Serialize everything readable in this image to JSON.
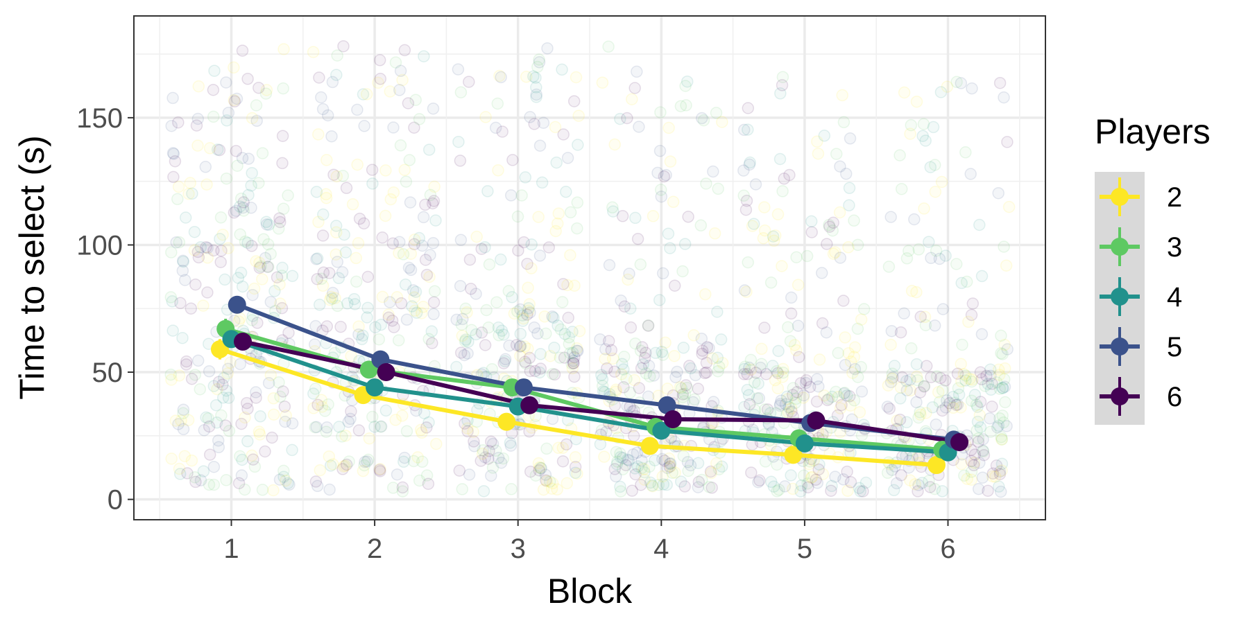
{
  "chart_data": {
    "type": "line",
    "xlabel": "Block",
    "ylabel": "Time to select (s)",
    "x_ticks": [
      "1",
      "2",
      "3",
      "4",
      "5",
      "6"
    ],
    "y_ticks": [
      "0",
      "50",
      "100",
      "150"
    ],
    "xlim": [
      0.32,
      6.68
    ],
    "ylim": [
      -8,
      190
    ],
    "grid": true,
    "legend": {
      "title": "Players",
      "position": "right"
    },
    "x": [
      1,
      2,
      3,
      4,
      5,
      6
    ],
    "series": [
      {
        "name": "2",
        "color": "#FDE725",
        "values": [
          59,
          41,
          30.5,
          21,
          17.5,
          13.5
        ],
        "errors": [
          4,
          2,
          1.5,
          1,
          1,
          1
        ]
      },
      {
        "name": "3",
        "color": "#5EC962",
        "values": [
          67,
          51,
          44,
          28.5,
          24,
          19.5
        ],
        "errors": [
          4,
          2,
          1.5,
          1,
          1,
          1
        ]
      },
      {
        "name": "4",
        "color": "#21918C",
        "values": [
          63,
          44,
          36.5,
          27,
          22,
          18.5
        ],
        "errors": [
          3,
          2,
          1.5,
          1,
          1,
          1
        ]
      },
      {
        "name": "5",
        "color": "#3B528B",
        "values": [
          76.5,
          55,
          44,
          37,
          30,
          23.5
        ],
        "errors": [
          3,
          2,
          1.5,
          1,
          1,
          1
        ]
      },
      {
        "name": "6",
        "color": "#440154",
        "values": [
          62,
          50,
          37,
          31.5,
          31,
          22.5
        ],
        "errors": [
          3,
          2,
          1.5,
          1,
          1,
          1
        ]
      }
    ],
    "raw_points": {
      "description": "jittered semi-transparent individual trials per block",
      "upper_bound_by_block": [
        180,
        180,
        178,
        178,
        168,
        166
      ],
      "dense_top_by_block": [
        110,
        100,
        75,
        60,
        55,
        50
      ]
    }
  }
}
